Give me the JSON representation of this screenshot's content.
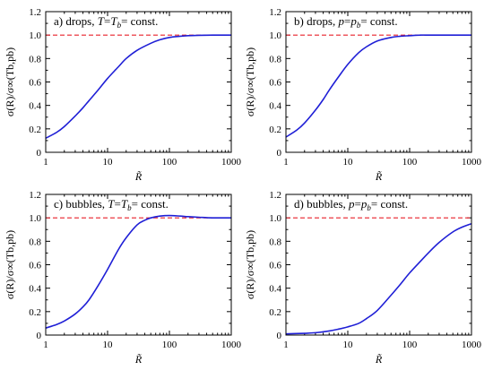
{
  "chart_data": [
    {
      "type": "line",
      "panel": "a",
      "title": "a) drops, T = T_b = const.",
      "title_parts": [
        "a) drops, ",
        "T",
        "=",
        "T",
        "b",
        "= const."
      ],
      "xlabel": "R̃",
      "ylabel": "σ(R)/σ∞(Tb,pb)",
      "x_scale": "log",
      "xlim": [
        1,
        1000
      ],
      "ylim": [
        0,
        1.2
      ],
      "xticks": [
        "1",
        "10",
        "100",
        "1000"
      ],
      "yticks": [
        "0",
        "0.2",
        "0.4",
        "0.6",
        "0.8",
        "1.0",
        "1.2"
      ],
      "reference_line": {
        "y": 1.0,
        "color": "#e8202a",
        "style": "dashed"
      },
      "series": [
        {
          "color": "#1f1fd6",
          "x": [
            1,
            1.5,
            2,
            3,
            4,
            5,
            7,
            10,
            15,
            20,
            30,
            50,
            70,
            100,
            150,
            200,
            300,
            500,
            1000
          ],
          "y": [
            0.12,
            0.17,
            0.22,
            0.31,
            0.38,
            0.44,
            0.53,
            0.63,
            0.73,
            0.8,
            0.87,
            0.93,
            0.96,
            0.98,
            0.99,
            0.995,
            0.998,
            1.0,
            1.0
          ]
        }
      ]
    },
    {
      "type": "line",
      "panel": "b",
      "title": "b) drops, p = p_b = const.",
      "title_parts": [
        "b) drops, ",
        "p",
        "=",
        "p",
        "b",
        "= const."
      ],
      "xlabel": "R̃",
      "ylabel": "σ(R)/σ∞(Tb,pb)",
      "x_scale": "log",
      "xlim": [
        1,
        1000
      ],
      "ylim": [
        0,
        1.2
      ],
      "xticks": [
        "1",
        "10",
        "100",
        "1000"
      ],
      "yticks": [
        "0",
        "0.2",
        "0.4",
        "0.6",
        "0.8",
        "1.0",
        "1.2"
      ],
      "reference_line": {
        "y": 1.0,
        "color": "#e8202a",
        "style": "dashed"
      },
      "series": [
        {
          "color": "#1f1fd6",
          "x": [
            1,
            1.5,
            2,
            3,
            4,
            5,
            7,
            10,
            15,
            20,
            30,
            50,
            70,
            100,
            150,
            200,
            300,
            500,
            1000
          ],
          "y": [
            0.13,
            0.19,
            0.25,
            0.36,
            0.45,
            0.53,
            0.64,
            0.75,
            0.85,
            0.9,
            0.95,
            0.98,
            0.99,
            0.995,
            1.0,
            1.0,
            1.0,
            1.0,
            1.0
          ]
        }
      ]
    },
    {
      "type": "line",
      "panel": "c",
      "title": "c) bubbles, T = T_b = const.",
      "title_parts": [
        "c) bubbles, ",
        "T",
        "=",
        "T",
        "b",
        "= const."
      ],
      "xlabel": "R̃",
      "ylabel": "σ(R)/σ∞(Tb,pb)",
      "x_scale": "log",
      "xlim": [
        1,
        1000
      ],
      "ylim": [
        0,
        1.2
      ],
      "xticks": [
        "1",
        "10",
        "100",
        "1000"
      ],
      "yticks": [
        "0",
        "0.2",
        "0.4",
        "0.6",
        "0.8",
        "1.0",
        "1.2"
      ],
      "reference_line": {
        "y": 1.0,
        "color": "#e8202a",
        "style": "dashed"
      },
      "series": [
        {
          "color": "#1f1fd6",
          "x": [
            1,
            1.5,
            2,
            3,
            4,
            5,
            7,
            10,
            15,
            20,
            30,
            40,
            50,
            70,
            100,
            150,
            200,
            300,
            500,
            1000
          ],
          "y": [
            0.06,
            0.09,
            0.12,
            0.18,
            0.24,
            0.3,
            0.42,
            0.56,
            0.73,
            0.83,
            0.94,
            0.98,
            1.0,
            1.015,
            1.02,
            1.015,
            1.01,
            1.005,
            1.0,
            1.0
          ]
        }
      ]
    },
    {
      "type": "line",
      "panel": "d",
      "title": "d) bubbles, p = p_b = const.",
      "title_parts": [
        "d) bubbles, ",
        "p",
        "=",
        "p",
        "b",
        "= const."
      ],
      "xlabel": "R̃",
      "ylabel": "σ(R)/σ∞(Tb,pb)",
      "x_scale": "log",
      "xlim": [
        1,
        1000
      ],
      "ylim": [
        0,
        1.2
      ],
      "xticks": [
        "1",
        "10",
        "100",
        "1000"
      ],
      "yticks": [
        "0",
        "0.2",
        "0.4",
        "0.6",
        "0.8",
        "1.0",
        "1.2"
      ],
      "reference_line": {
        "y": 1.0,
        "color": "#e8202a",
        "style": "dashed"
      },
      "series": [
        {
          "color": "#1f1fd6",
          "x": [
            1,
            2,
            3,
            5,
            7,
            10,
            15,
            20,
            30,
            50,
            70,
            100,
            150,
            200,
            300,
            500,
            700,
            1000
          ],
          "y": [
            0.01,
            0.015,
            0.02,
            0.035,
            0.05,
            0.07,
            0.1,
            0.14,
            0.21,
            0.34,
            0.43,
            0.53,
            0.63,
            0.7,
            0.79,
            0.88,
            0.92,
            0.95
          ]
        }
      ]
    }
  ]
}
